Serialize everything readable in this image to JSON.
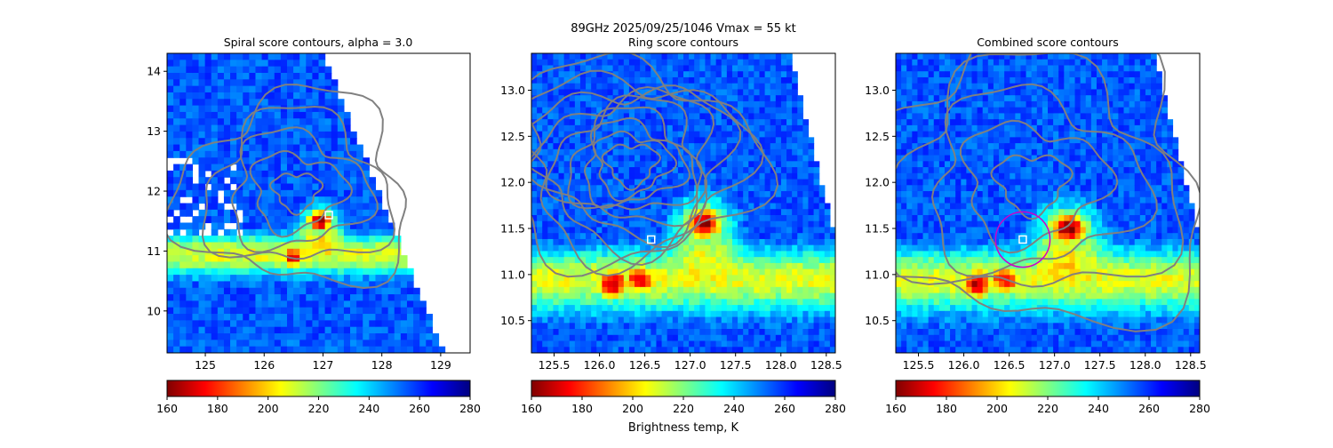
{
  "figure": {
    "suptitle_line1": "89GHz  2025/09/25/1046    Vmax = 55 kt",
    "colorbar_label": "Brightness temp, K"
  },
  "colormap": {
    "name": "jet",
    "stops": [
      "#800000",
      "#ff0000",
      "#ff8000",
      "#ffff00",
      "#80ff80",
      "#00ffff",
      "#0080ff",
      "#0000ff",
      "#000080"
    ],
    "contour_color": "#808080",
    "fit_circle_color": "#cc00cc",
    "center_marker_color": "#ffffff"
  },
  "chart_data": [
    {
      "type": "heatmap",
      "title": "Spiral score contours, alpha =  3.0",
      "xlim": [
        124.35,
        129.5
      ],
      "ylim": [
        9.3,
        14.3
      ],
      "xticks": [
        125,
        126,
        127,
        128,
        129
      ],
      "yticks": [
        10,
        11,
        12,
        13,
        14
      ],
      "colorbar": {
        "range": [
          160,
          280
        ],
        "ticks": [
          160,
          180,
          200,
          220,
          240,
          260,
          280
        ]
      },
      "cold_cores_K": [
        {
          "x": 126.95,
          "y": 11.5,
          "value": 160
        },
        {
          "x": 126.5,
          "y": 10.9,
          "value": 165
        }
      ],
      "center_marker": {
        "x": 127.1,
        "y": 11.6
      }
    },
    {
      "type": "heatmap",
      "title": "Ring score contours",
      "xlim": [
        125.25,
        128.6
      ],
      "ylim": [
        10.15,
        13.4
      ],
      "xticks": [
        125.5,
        126.0,
        126.5,
        127.0,
        127.5,
        128.0,
        128.5
      ],
      "yticks": [
        10.5,
        11.0,
        11.5,
        12.0,
        12.5,
        13.0
      ],
      "colorbar": {
        "range": [
          160,
          280
        ],
        "ticks": [
          160,
          180,
          200,
          220,
          240,
          260,
          280
        ]
      },
      "cold_cores_K": [
        {
          "x": 127.15,
          "y": 11.55,
          "value": 160
        },
        {
          "x": 126.15,
          "y": 10.9,
          "value": 165
        },
        {
          "x": 126.45,
          "y": 10.95,
          "value": 170
        }
      ],
      "center_marker": {
        "x": 126.57,
        "y": 11.38
      }
    },
    {
      "type": "heatmap",
      "title": "Combined score contours",
      "xlim": [
        125.25,
        128.6
      ],
      "ylim": [
        10.15,
        13.4
      ],
      "xticks": [
        125.5,
        126.0,
        126.5,
        127.0,
        127.5,
        128.0,
        128.5
      ],
      "yticks": [
        10.5,
        11.0,
        11.5,
        12.0,
        12.5,
        13.0
      ],
      "colorbar": {
        "range": [
          160,
          280
        ],
        "ticks": [
          160,
          180,
          200,
          220,
          240,
          260,
          280
        ]
      },
      "cold_cores_K": [
        {
          "x": 127.15,
          "y": 11.5,
          "value": 160
        },
        {
          "x": 126.15,
          "y": 10.9,
          "value": 165
        },
        {
          "x": 126.45,
          "y": 10.95,
          "value": 170
        }
      ],
      "center_marker": {
        "x": 126.65,
        "y": 11.38
      },
      "fit_circle": {
        "x": 126.65,
        "y": 11.38,
        "radius_deg": 0.3
      }
    }
  ]
}
